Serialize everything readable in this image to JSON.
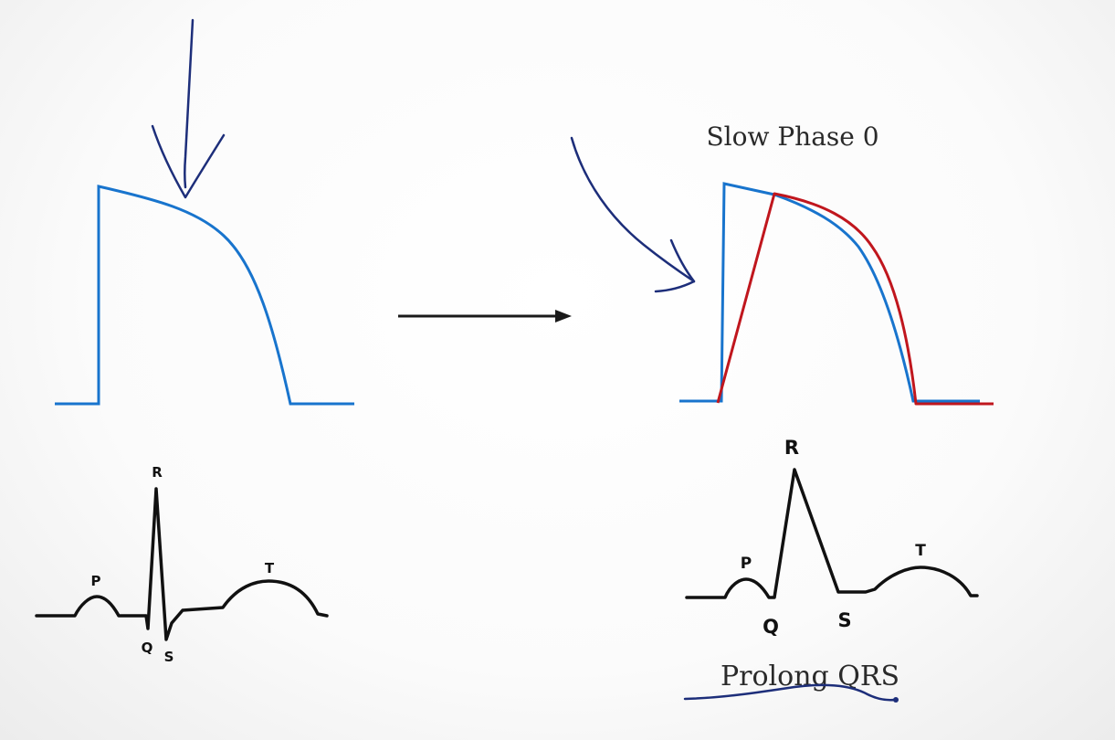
{
  "colors": {
    "action_potential": "#1874cd",
    "slow_action_potential": "#c0161d",
    "ink": "#1d2e7a",
    "ecg": "#111111",
    "arrow": "#1a1a1a",
    "text": "#2a2a2a"
  },
  "left": {
    "ecg": {
      "p": "P",
      "q": "Q",
      "r": "R",
      "s": "S",
      "t": "T"
    }
  },
  "right": {
    "title": "Slow Phase 0",
    "ecg": {
      "p": "P",
      "q": "Q",
      "r": "R",
      "s": "S",
      "t": "T"
    },
    "caption": "Prolong QRS"
  }
}
